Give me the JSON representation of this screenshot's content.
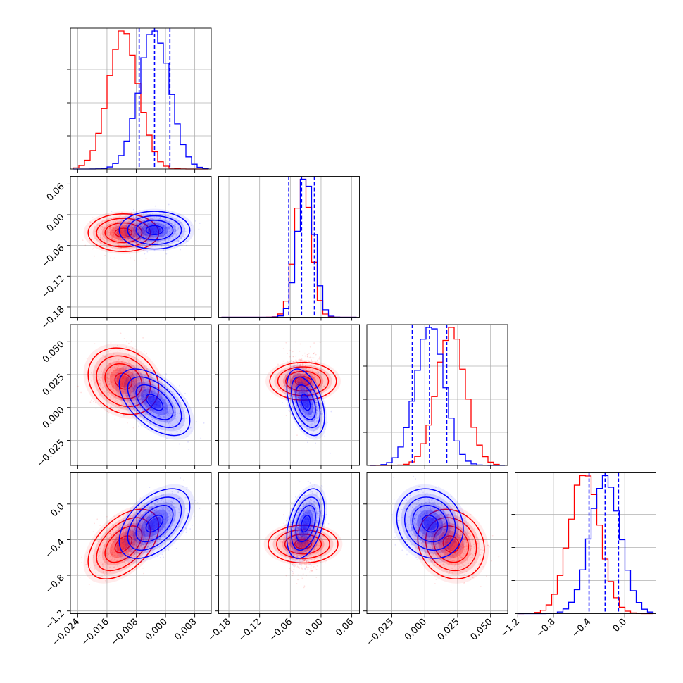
{
  "colors": {
    "red": "#ff0000",
    "blue": "#0000ff",
    "grid": "#b0b0b0"
  },
  "chart_data": {
    "type": "corner",
    "grid": true,
    "params": [
      {
        "range": [
          -0.026,
          0.0125
        ],
        "ticks": [
          -0.024,
          -0.016,
          -0.008,
          0.0,
          0.008
        ],
        "tick_labels": [
          "−0.024",
          "−0.016",
          "−0.008",
          "0.000",
          "0.008"
        ]
      },
      {
        "range": [
          -0.2,
          0.075
        ],
        "ticks": [
          -0.18,
          -0.12,
          -0.06,
          0.0,
          0.06
        ],
        "tick_labels": [
          "−0.18",
          "−0.12",
          "−0.06",
          "0.00",
          "0.06"
        ]
      },
      {
        "range": [
          -0.044,
          0.063
        ],
        "ticks": [
          -0.025,
          0.0,
          0.025,
          0.05
        ],
        "tick_labels": [
          "−0.025",
          "0.000",
          "0.025",
          "0.050"
        ]
      },
      {
        "range": [
          -1.23,
          0.35
        ],
        "ticks": [
          -1.2,
          -0.8,
          -0.4,
          0.0
        ],
        "tick_labels": [
          "−1.2",
          "−0.8",
          "−0.4",
          "0.0"
        ]
      }
    ],
    "series": [
      {
        "color": "red",
        "mean": [
          -0.0115,
          -0.035,
          0.02,
          -0.45
        ],
        "std": [
          0.0042,
          0.016,
          0.011,
          0.17
        ]
      },
      {
        "color": "blue",
        "mean": [
          -0.003,
          -0.03,
          0.004,
          -0.22
        ],
        "std": [
          0.0042,
          0.016,
          0.011,
          0.17
        ]
      }
    ],
    "correlations": {
      "red": {
        "1-0": 0.0,
        "2-0": -0.2,
        "2-1": 0.0,
        "3-0": 0.5,
        "3-1": 0.0,
        "3-2": -0.15
      },
      "blue": {
        "1-0": 0.0,
        "2-0": -0.55,
        "2-1": -0.45,
        "3-0": 0.5,
        "3-1": 0.4,
        "3-2": -0.15
      }
    },
    "quantile_lines": {
      "color": "blue",
      "values": [
        [
          -0.0072,
          -0.003,
          0.0012
        ],
        [
          -0.063,
          -0.038,
          -0.013
        ],
        [
          -0.0095,
          0.0036,
          0.0167
        ],
        [
          -0.4,
          -0.22,
          -0.07
        ]
      ]
    }
  }
}
